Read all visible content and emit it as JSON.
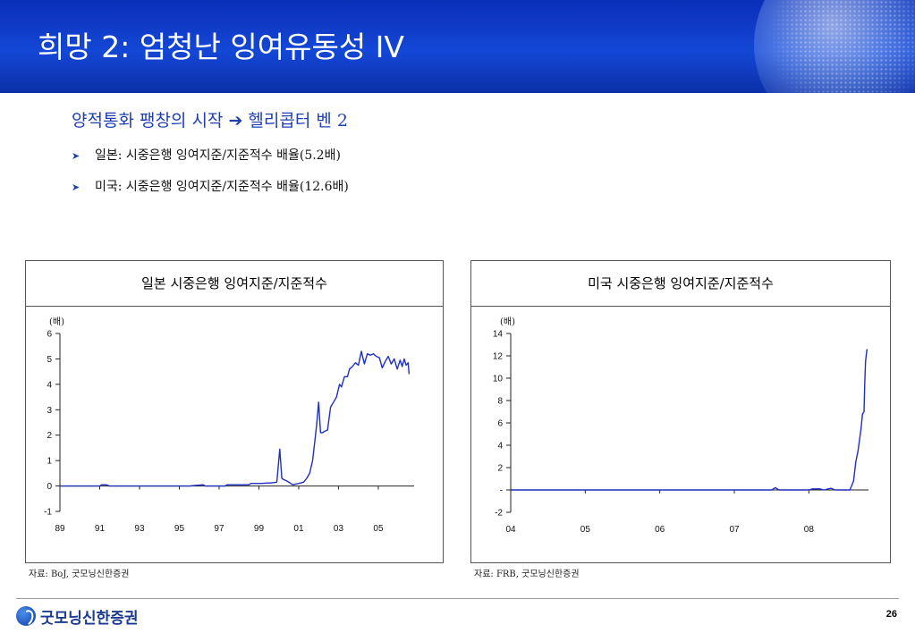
{
  "header": {
    "title": "희망 2: 엄청난 잉여유동성 IV",
    "gradient_top": "#0a2fb8",
    "gradient_bottom": "#0b2fa8"
  },
  "subtitle": "양적통화 팽창의 시작 ➔ 헬리콥터 벤 2",
  "bullets": [
    {
      "icon": "arrow-bullet-icon",
      "text": "일본: 시중은행 잉여지준/지준적수 배율(5.2배)"
    },
    {
      "icon": "arrow-bullet-icon",
      "text": "미국: 시중은행 잉여지준/지준적수 배율(12.6배)"
    }
  ],
  "chart_data": [
    {
      "type": "line",
      "title": "일본 시중은행 잉여지준/지준적수",
      "unit": "(배)",
      "xlim": [
        1989,
        2006.8
      ],
      "ylim": [
        -1,
        6
      ],
      "x_ticks": [
        "89",
        "91",
        "93",
        "95",
        "97",
        "99",
        "01",
        "03",
        "05"
      ],
      "y_ticks": [
        "-1",
        "0",
        "1",
        "2",
        "3",
        "4",
        "5",
        "6"
      ],
      "color": "#1f2fc0",
      "series": [
        {
          "x": [
            1989,
            1991.0,
            1991.1,
            1991.3,
            1991.5,
            1995.5,
            1996.2,
            1996.3,
            1997.3,
            1997.4,
            1998.5,
            1998.6,
            1999.2,
            1999.4,
            1999.6,
            1999.9,
            2000.05,
            2000.15,
            2000.25,
            2000.4,
            2000.7,
            2001.0,
            2001.25,
            2001.4,
            2001.55,
            2001.7,
            2001.8,
            2001.9,
            2002.0,
            2002.1,
            2002.2,
            2002.3,
            2002.45,
            2002.6,
            2002.75,
            2002.9,
            2003.05,
            2003.15,
            2003.3,
            2003.45,
            2003.55,
            2003.7,
            2003.85,
            2004.0,
            2004.15,
            2004.3,
            2004.45,
            2004.6,
            2004.75,
            2004.9,
            2005.05,
            2005.2,
            2005.35,
            2005.5,
            2005.65,
            2005.8,
            2005.95,
            2006.1,
            2006.2,
            2006.3,
            2006.4,
            2006.5,
            2006.55
          ],
          "y": [
            0,
            0,
            0.05,
            0.05,
            0,
            0,
            0.05,
            0,
            0,
            0.05,
            0.05,
            0.1,
            0.1,
            0.12,
            0.12,
            0.15,
            1.45,
            0.3,
            0.25,
            0.2,
            0.05,
            0.1,
            0.15,
            0.3,
            0.5,
            1.0,
            1.7,
            2.4,
            3.3,
            2.1,
            2.1,
            2.15,
            2.2,
            3.1,
            3.3,
            3.5,
            4.0,
            3.9,
            4.3,
            4.3,
            4.6,
            4.7,
            4.85,
            4.75,
            5.3,
            4.8,
            5.2,
            5.15,
            5.2,
            5.1,
            5.05,
            4.65,
            4.9,
            5.1,
            4.8,
            5.0,
            4.6,
            4.95,
            4.7,
            5.0,
            4.75,
            4.85,
            4.4
          ]
        }
      ]
    },
    {
      "type": "line",
      "title": "미국 시중은행 잉여지준/지준적수",
      "unit": "(배)",
      "xlim": [
        2004,
        2008.8
      ],
      "ylim": [
        -2,
        14
      ],
      "x_ticks": [
        "04",
        "05",
        "06",
        "07",
        "08"
      ],
      "y_ticks": [
        "-2",
        "-",
        "2",
        "4",
        "6",
        "8",
        "10",
        "12",
        "14"
      ],
      "color": "#1f2fc0",
      "series": [
        {
          "x": [
            2004.0,
            2007.5,
            2007.55,
            2007.6,
            2008.0,
            2008.05,
            2008.15,
            2008.2,
            2008.3,
            2008.35,
            2008.45,
            2008.55,
            2008.6,
            2008.63,
            2008.66,
            2008.7,
            2008.72,
            2008.74,
            2008.75,
            2008.76,
            2008.78
          ],
          "y": [
            0,
            0,
            0.2,
            0,
            0,
            0.1,
            0.1,
            0,
            0.15,
            0,
            0,
            0,
            0.8,
            2.5,
            3.5,
            5.5,
            6.8,
            7.0,
            9.5,
            11.5,
            12.6
          ]
        }
      ]
    }
  ],
  "sources": {
    "left": "자료: BoJ, 굿모닝신한증권",
    "right": "자료: FRB, 굿모닝신한증권"
  },
  "footer": {
    "logo_text": "굿모닝신한증권",
    "page_number": "26"
  }
}
